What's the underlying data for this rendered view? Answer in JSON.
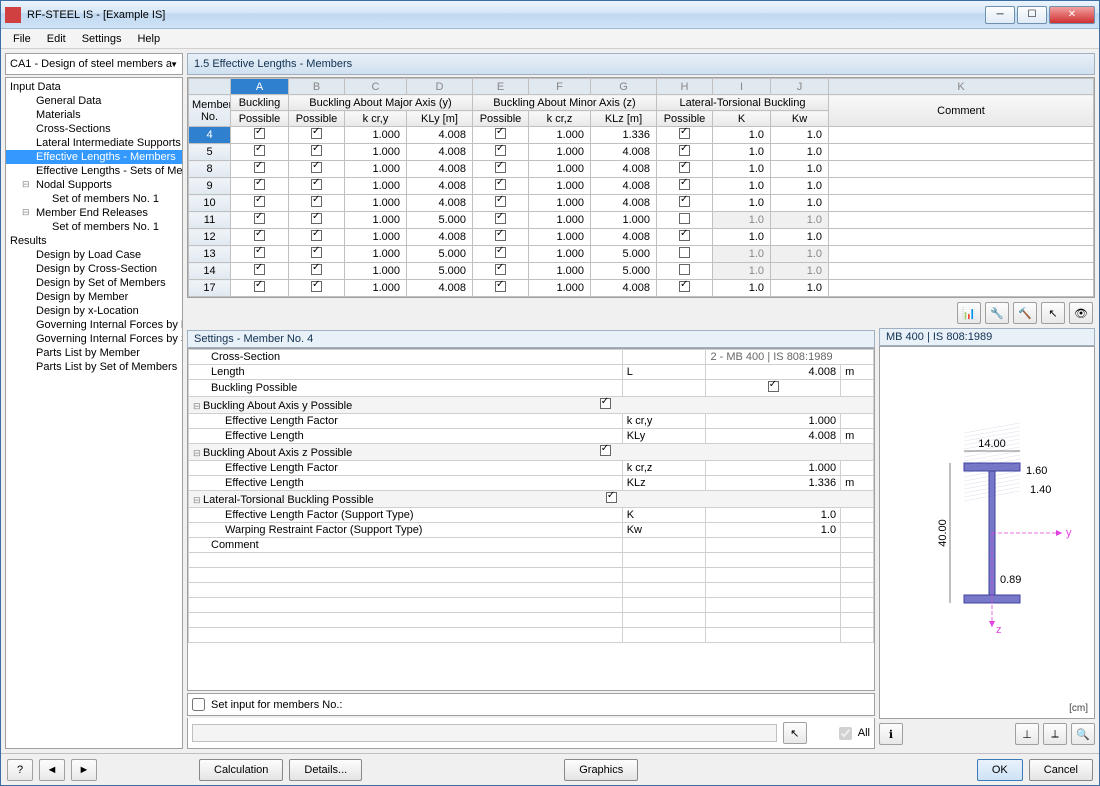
{
  "window": {
    "title": "RF-STEEL IS - [Example IS]"
  },
  "menu": {
    "file": "File",
    "edit": "Edit",
    "settings": "Settings",
    "help": "Help"
  },
  "combo": {
    "value": "CA1 - Design of steel members a"
  },
  "tree": {
    "input_data": "Input Data",
    "general_data": "General Data",
    "materials": "Materials",
    "cross_sections": "Cross-Sections",
    "lateral_supports": "Lateral Intermediate Supports",
    "eff_members": "Effective Lengths - Members",
    "eff_sets": "Effective Lengths - Sets of Mem",
    "nodal_supports": "Nodal Supports",
    "set1a": "Set of members No. 1",
    "member_end_releases": "Member End Releases",
    "set1b": "Set of members No. 1",
    "results": "Results",
    "by_load": "Design by Load Case",
    "by_cs": "Design by Cross-Section",
    "by_set": "Design by Set of Members",
    "by_member": "Design by Member",
    "by_xloc": "Design by x-Location",
    "gov_m": "Governing Internal Forces by M",
    "gov_s": "Governing Internal Forces by Se",
    "parts_m": "Parts List by Member",
    "parts_s": "Parts List by Set of Members"
  },
  "pane": {
    "title": "1.5 Effective Lengths - Members"
  },
  "grid": {
    "col_letters": [
      "A",
      "B",
      "C",
      "D",
      "E",
      "F",
      "G",
      "H",
      "I",
      "J",
      "K"
    ],
    "header_groups": {
      "member_no": "Member\nNo.",
      "buckling": "Buckling",
      "major": "Buckling About Major Axis (y)",
      "minor": "Buckling About Minor Axis (z)",
      "ltb": "Lateral-Torsional Buckling",
      "comment": "Comment"
    },
    "header_cols": {
      "possible": "Possible",
      "kcry": "k cr,y",
      "kly": "KLy [m]",
      "kcrz": "k cr,z",
      "klz": "KLz [m]",
      "K": "K",
      "Kw": "Kw"
    },
    "rows": [
      {
        "no": "4",
        "bp": true,
        "byp": true,
        "kcry": "1.000",
        "kly": "4.008",
        "bzp": true,
        "kcrz": "1.000",
        "klz": "1.336",
        "ltbp": true,
        "K": "1.0",
        "Kw": "1.0",
        "dis": false
      },
      {
        "no": "5",
        "bp": true,
        "byp": true,
        "kcry": "1.000",
        "kly": "4.008",
        "bzp": true,
        "kcrz": "1.000",
        "klz": "4.008",
        "ltbp": true,
        "K": "1.0",
        "Kw": "1.0",
        "dis": false
      },
      {
        "no": "8",
        "bp": true,
        "byp": true,
        "kcry": "1.000",
        "kly": "4.008",
        "bzp": true,
        "kcrz": "1.000",
        "klz": "4.008",
        "ltbp": true,
        "K": "1.0",
        "Kw": "1.0",
        "dis": false
      },
      {
        "no": "9",
        "bp": true,
        "byp": true,
        "kcry": "1.000",
        "kly": "4.008",
        "bzp": true,
        "kcrz": "1.000",
        "klz": "4.008",
        "ltbp": true,
        "K": "1.0",
        "Kw": "1.0",
        "dis": false
      },
      {
        "no": "10",
        "bp": true,
        "byp": true,
        "kcry": "1.000",
        "kly": "4.008",
        "bzp": true,
        "kcrz": "1.000",
        "klz": "4.008",
        "ltbp": true,
        "K": "1.0",
        "Kw": "1.0",
        "dis": false
      },
      {
        "no": "11",
        "bp": true,
        "byp": true,
        "kcry": "1.000",
        "kly": "5.000",
        "bzp": true,
        "kcrz": "1.000",
        "klz": "1.000",
        "ltbp": false,
        "K": "1.0",
        "Kw": "1.0",
        "dis": true
      },
      {
        "no": "12",
        "bp": true,
        "byp": true,
        "kcry": "1.000",
        "kly": "4.008",
        "bzp": true,
        "kcrz": "1.000",
        "klz": "4.008",
        "ltbp": true,
        "K": "1.0",
        "Kw": "1.0",
        "dis": false
      },
      {
        "no": "13",
        "bp": true,
        "byp": true,
        "kcry": "1.000",
        "kly": "5.000",
        "bzp": true,
        "kcrz": "1.000",
        "klz": "5.000",
        "ltbp": false,
        "K": "1.0",
        "Kw": "1.0",
        "dis": true
      },
      {
        "no": "14",
        "bp": true,
        "byp": true,
        "kcry": "1.000",
        "kly": "5.000",
        "bzp": true,
        "kcrz": "1.000",
        "klz": "5.000",
        "ltbp": false,
        "K": "1.0",
        "Kw": "1.0",
        "dis": true
      },
      {
        "no": "17",
        "bp": true,
        "byp": true,
        "kcry": "1.000",
        "kly": "4.008",
        "bzp": true,
        "kcrz": "1.000",
        "klz": "4.008",
        "ltbp": true,
        "K": "1.0",
        "Kw": "1.0",
        "dis": false
      }
    ]
  },
  "settings": {
    "title": "Settings - Member No. 4",
    "rows": {
      "cross_section": {
        "lbl": "Cross-Section",
        "val": "2 - MB 400 | IS 808:1989"
      },
      "length": {
        "lbl": "Length",
        "sym": "L",
        "val": "4.008",
        "unit": "m"
      },
      "buckling_possible": {
        "lbl": "Buckling Possible",
        "chk": true
      },
      "buck_y": {
        "lbl": "Buckling About Axis y Possible",
        "chk": true
      },
      "elf_y": {
        "lbl": "Effective Length Factor",
        "sym": "k cr,y",
        "val": "1.000"
      },
      "el_y": {
        "lbl": "Effective Length",
        "sym": "KLy",
        "val": "4.008",
        "unit": "m"
      },
      "buck_z": {
        "lbl": "Buckling About Axis z Possible",
        "chk": true
      },
      "elf_z": {
        "lbl": "Effective Length Factor",
        "sym": "k cr,z",
        "val": "1.000"
      },
      "el_z": {
        "lbl": "Effective Length",
        "sym": "KLz",
        "val": "1.336",
        "unit": "m"
      },
      "ltb": {
        "lbl": "Lateral-Torsional Buckling Possible",
        "chk": true
      },
      "elf_sup": {
        "lbl": "Effective Length Factor (Support Type)",
        "sym": "K",
        "val": "1.0"
      },
      "wrf": {
        "lbl": "Warping Restraint Factor (Support Type)",
        "sym": "Kw",
        "val": "1.0"
      },
      "comment": {
        "lbl": "Comment"
      }
    },
    "set_input_label": "Set input for members No.:",
    "all_label": "All"
  },
  "preview": {
    "title": "MB 400 | IS 808:1989",
    "unit": "[cm]",
    "dims": {
      "width": "14.00",
      "height": "40.00",
      "tf": "1.60",
      "tw": "1.40",
      "r": "0.89"
    },
    "colors": {
      "fill": "#7878c8",
      "hatch": "#4040a0",
      "dim": "#000",
      "axis_y": "#e040e0",
      "axis_z": "#e040e0"
    }
  },
  "buttons": {
    "calculation": "Calculation",
    "details": "Details...",
    "graphics": "Graphics",
    "ok": "OK",
    "cancel": "Cancel"
  }
}
